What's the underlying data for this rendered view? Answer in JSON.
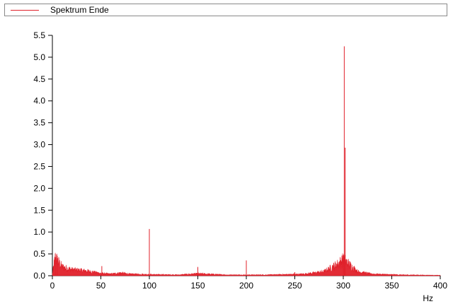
{
  "chart_data": {
    "type": "line",
    "title": "",
    "xlabel": "",
    "ylabel": "",
    "x_unit": "Hz",
    "xlim": [
      0,
      400
    ],
    "ylim": [
      0,
      5.5
    ],
    "x_ticks": [
      "0",
      "50",
      "100",
      "150",
      "200",
      "250",
      "300",
      "350",
      "400"
    ],
    "y_ticks": [
      "0.0",
      "0.5",
      "1.0",
      "1.5",
      "2.0",
      "2.5",
      "3.0",
      "3.5",
      "4.0",
      "4.5",
      "5.0",
      "5.5"
    ],
    "grid": false,
    "legend_position": "top",
    "series": [
      {
        "name": "Spektrum Ende",
        "color": "#e0202a",
        "peaks": [
          {
            "x": 3,
            "y": 0.5
          },
          {
            "x": 5,
            "y": 0.45
          },
          {
            "x": 51,
            "y": 0.22
          },
          {
            "x": 70,
            "y": 0.08
          },
          {
            "x": 100,
            "y": 1.07
          },
          {
            "x": 150,
            "y": 0.2
          },
          {
            "x": 200,
            "y": 0.35
          },
          {
            "x": 250,
            "y": 0.08
          },
          {
            "x": 300,
            "y": 0.47
          },
          {
            "x": 301,
            "y": 5.25
          },
          {
            "x": 302,
            "y": 2.93
          },
          {
            "x": 350,
            "y": 0.03
          }
        ],
        "envelope": [
          {
            "x": 0,
            "y": 0.05
          },
          {
            "x": 3,
            "y": 0.45
          },
          {
            "x": 6,
            "y": 0.35
          },
          {
            "x": 10,
            "y": 0.22
          },
          {
            "x": 20,
            "y": 0.15
          },
          {
            "x": 35,
            "y": 0.12
          },
          {
            "x": 50,
            "y": 0.06
          },
          {
            "x": 60,
            "y": 0.04
          },
          {
            "x": 70,
            "y": 0.07
          },
          {
            "x": 80,
            "y": 0.04
          },
          {
            "x": 100,
            "y": 0.03
          },
          {
            "x": 130,
            "y": 0.02
          },
          {
            "x": 150,
            "y": 0.05
          },
          {
            "x": 180,
            "y": 0.02
          },
          {
            "x": 220,
            "y": 0.02
          },
          {
            "x": 260,
            "y": 0.04
          },
          {
            "x": 280,
            "y": 0.1
          },
          {
            "x": 295,
            "y": 0.3
          },
          {
            "x": 300,
            "y": 0.4
          },
          {
            "x": 305,
            "y": 0.3
          },
          {
            "x": 315,
            "y": 0.1
          },
          {
            "x": 330,
            "y": 0.04
          },
          {
            "x": 360,
            "y": 0.02
          },
          {
            "x": 400,
            "y": 0.01
          }
        ]
      }
    ]
  }
}
